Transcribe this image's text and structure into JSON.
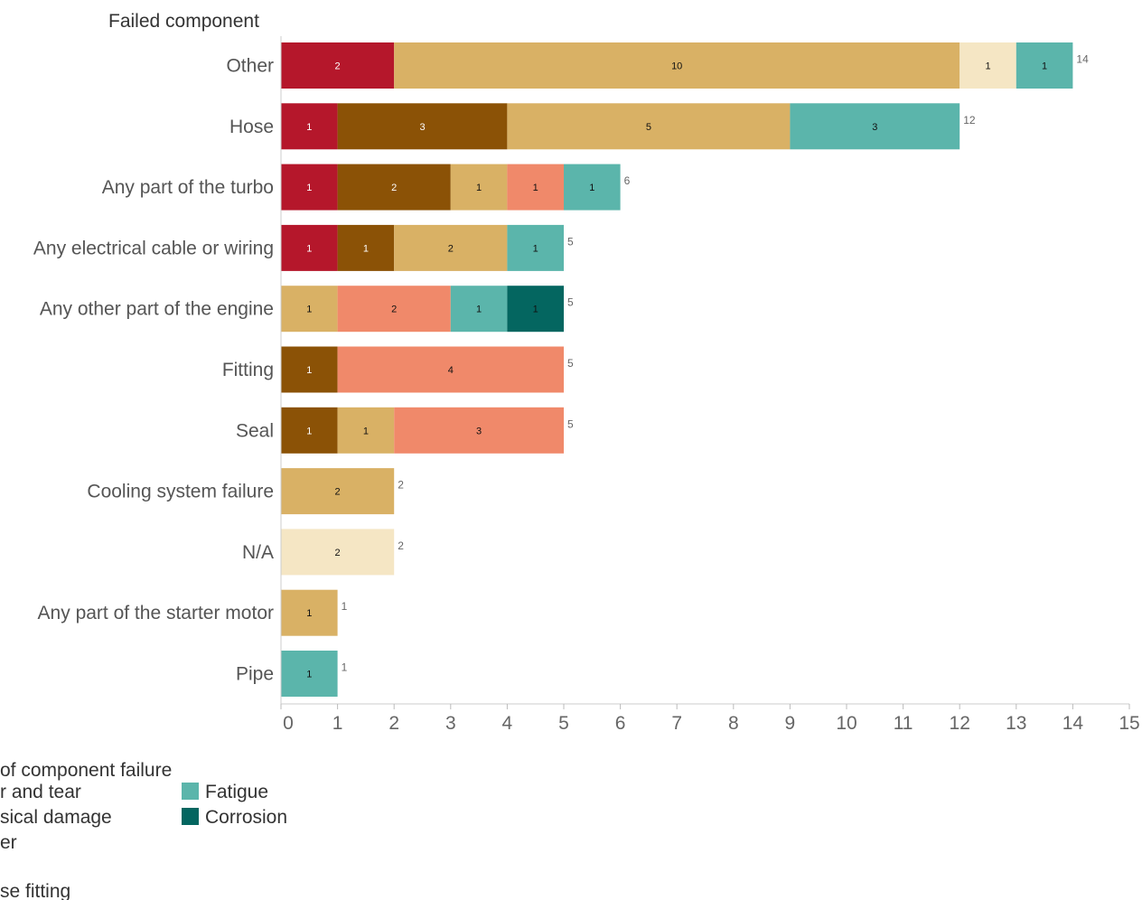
{
  "chart_data": {
    "type": "bar",
    "orientation": "horizontal",
    "stacked": true,
    "title": "",
    "ylabel": "Failed component",
    "xlabel": "",
    "xlim": [
      0,
      15
    ],
    "x_ticks": [
      "0",
      "1",
      "2",
      "3",
      "4",
      "5",
      "6",
      "7",
      "8",
      "9",
      "10",
      "11",
      "12",
      "13",
      "14",
      "15"
    ],
    "grid": false,
    "categories": [
      "Other",
      "Hose",
      "Any part of the turbo",
      "Any electrical cable or wiring",
      "Any other part of the engine",
      "Fitting",
      "Seal",
      "Cooling system failure",
      "N/A",
      "Any part of the starter motor",
      "Pipe"
    ],
    "totals": [
      14,
      12,
      6,
      5,
      5,
      5,
      5,
      2,
      2,
      1,
      1
    ],
    "series": [
      {
        "key": "s1",
        "color": "#b5172b",
        "values": [
          2,
          1,
          1,
          1,
          0,
          0,
          0,
          0,
          0,
          0,
          0
        ]
      },
      {
        "key": "s2",
        "color": "#8b5206",
        "values": [
          0,
          3,
          2,
          1,
          0,
          1,
          1,
          0,
          0,
          0,
          0
        ]
      },
      {
        "name": "Wear and tear",
        "color": "#d9b165",
        "values": [
          10,
          5,
          1,
          2,
          1,
          0,
          1,
          2,
          0,
          1,
          0
        ]
      },
      {
        "name": "Physical damage",
        "color": "#f0896a",
        "values": [
          0,
          0,
          1,
          0,
          2,
          4,
          3,
          0,
          0,
          0,
          0
        ]
      },
      {
        "name": "Other",
        "color": "#f5e6c4",
        "values": [
          1,
          0,
          0,
          0,
          0,
          0,
          0,
          0,
          2,
          0,
          0
        ]
      },
      {
        "name": "Fatigue",
        "color": "#5bb5ab",
        "values": [
          1,
          3,
          1,
          1,
          1,
          0,
          0,
          0,
          0,
          0,
          1
        ]
      },
      {
        "name": "Corrosion",
        "color": "#046660",
        "values": [
          0,
          0,
          0,
          0,
          1,
          0,
          0,
          0,
          0,
          0,
          0
        ]
      }
    ],
    "legend": {
      "title": "of component failure",
      "placement": "bottom-left",
      "col1": [
        "r and tear",
        "sical damage",
        "er"
      ],
      "col1_colors": [
        "#d9b165",
        "#f0896a",
        "#f5e6c4"
      ],
      "col2": [
        "Fatigue",
        "Corrosion"
      ],
      "col2_colors": [
        "#5bb5ab",
        "#046660"
      ],
      "footer": "se fitting"
    }
  }
}
